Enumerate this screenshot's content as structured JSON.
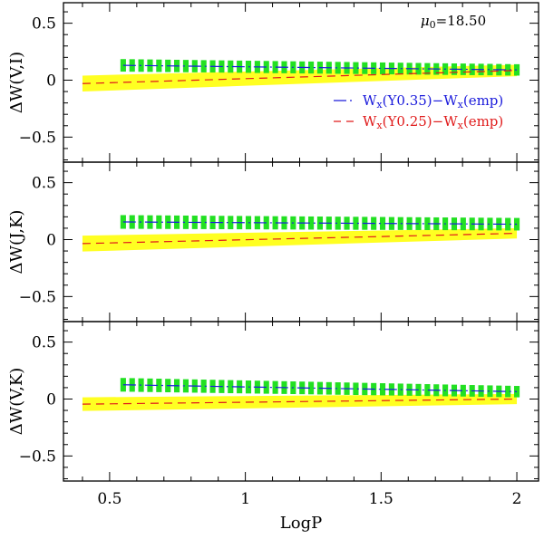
{
  "chart_data": [
    {
      "type": "line",
      "ylabel": "ΔW(V,I)",
      "xlim": [
        0.33,
        2.08
      ],
      "ylim": [
        -0.72,
        0.68
      ],
      "annotation": {
        "prefix": "μ",
        "sub": "0",
        "suffix": "=18.50"
      },
      "legend": [
        {
          "prefix": "W",
          "sub": "x",
          "mid": "(Y0.35)−W",
          "sub2": "x",
          "suffix": "(emp)",
          "color": "#1a1adb",
          "dash": "dashdot"
        },
        {
          "prefix": "W",
          "sub": "x",
          "mid": "(Y0.25)−W",
          "sub2": "x",
          "suffix": "(emp)",
          "color": "#e01b1b",
          "dash": "dashed"
        }
      ],
      "series": [
        {
          "x": [
            0.55,
            2.0
          ],
          "y": [
            0.13,
            0.09
          ],
          "band_half": [
            0.055,
            0.05
          ],
          "color": "#1a1adb",
          "band_color": "#22e022",
          "band": "hatched"
        },
        {
          "x": [
            0.4,
            2.0
          ],
          "y": [
            -0.03,
            0.085
          ],
          "band_half": [
            0.07,
            0.05
          ],
          "color": "#e01b1b",
          "band_color": "#ffff22",
          "band": "solid"
        }
      ]
    },
    {
      "type": "line",
      "ylabel": "ΔW(J,K)",
      "xlim": [
        0.33,
        2.08
      ],
      "ylim": [
        -0.72,
        0.68
      ],
      "series": [
        {
          "x": [
            0.55,
            2.0
          ],
          "y": [
            0.155,
            0.135
          ],
          "band_half": [
            0.06,
            0.055
          ],
          "color": "#1a1adb",
          "band_color": "#22e022",
          "band": "hatched"
        },
        {
          "x": [
            0.4,
            2.0
          ],
          "y": [
            -0.035,
            0.055
          ],
          "band_half": [
            0.07,
            0.045
          ],
          "color": "#e01b1b",
          "band_color": "#ffff22",
          "band": "solid"
        }
      ]
    },
    {
      "type": "line",
      "ylabel": "ΔW(V,K)",
      "xlabel": "LogP",
      "xlim": [
        0.33,
        2.08
      ],
      "ylim": [
        -0.72,
        0.68
      ],
      "series": [
        {
          "x": [
            0.55,
            2.0
          ],
          "y": [
            0.125,
            0.065
          ],
          "band_half": [
            0.06,
            0.05
          ],
          "color": "#1a1adb",
          "band_color": "#22e022",
          "band": "hatched"
        },
        {
          "x": [
            0.4,
            2.0
          ],
          "y": [
            -0.045,
            0.0
          ],
          "band_half": [
            0.06,
            0.045
          ],
          "color": "#e01b1b",
          "band_color": "#ffff22",
          "band": "solid"
        }
      ]
    }
  ],
  "axes": {
    "y_ticks": [
      0.5,
      0,
      -0.5
    ],
    "y_tick_labels": [
      "0.5",
      "0",
      "−0.5"
    ],
    "x_ticks": [
      0.5,
      1,
      1.5,
      2
    ],
    "x_tick_labels": [
      "0.5",
      "1",
      "1.5",
      "2"
    ]
  }
}
